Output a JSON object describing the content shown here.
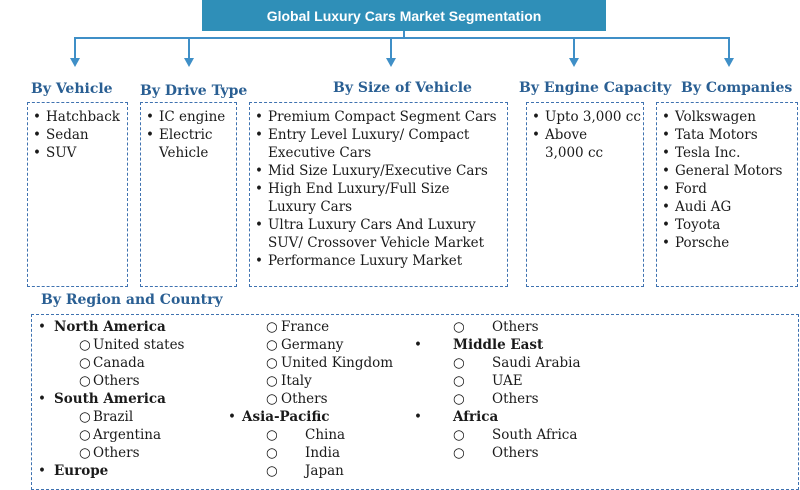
{
  "title": "Global Luxury Cars Market Segmentation",
  "segments": [
    {
      "heading": "By Vehicle",
      "items": [
        "Hatchback",
        "Sedan",
        "SUV"
      ]
    },
    {
      "heading": "By Drive Type",
      "items": [
        "IC engine",
        "Electric Vehicle"
      ]
    },
    {
      "heading": "By Size of Vehicle",
      "items": [
        "Premium Compact Segment Cars",
        "Entry Level Luxury/ Compact Executive Cars",
        "Mid Size Luxury/Executive Cars",
        "High End Luxury/Full Size Luxury Cars",
        "Ultra Luxury Cars And Luxury SUV/ Crossover Vehicle Market",
        "Performance Luxury Market"
      ]
    },
    {
      "heading": "By Engine Capacity",
      "items": [
        "Upto 3,000 cc",
        "Above 3,000 cc"
      ]
    },
    {
      "heading": "By Companies",
      "items": [
        "Volkswagen",
        "Tata Motors",
        "Tesla Inc.",
        "General Motors",
        "Ford",
        "Audi AG",
        "Toyota",
        "Porsche"
      ]
    }
  ],
  "region": {
    "heading": "By Region and Country",
    "north_america": {
      "name": "North America",
      "countries": [
        "United states",
        "Canada",
        "Others"
      ]
    },
    "south_america": {
      "name": "South America",
      "countries": [
        "Brazil",
        "Argentina",
        "Others"
      ]
    },
    "europe": {
      "name": "Europe",
      "countries": [
        "France",
        "Germany",
        "United Kingdom",
        "Italy",
        "Others"
      ]
    },
    "asia_pacific": {
      "name": "Asia-Pacific",
      "countries": [
        "China",
        "India",
        "Japan",
        "Others"
      ]
    },
    "middle_east": {
      "name": "Middle East",
      "countries": [
        "Saudi Arabia",
        "UAE",
        "Others"
      ]
    },
    "africa": {
      "name": "Africa",
      "countries": [
        "South Africa",
        "Others"
      ]
    }
  }
}
